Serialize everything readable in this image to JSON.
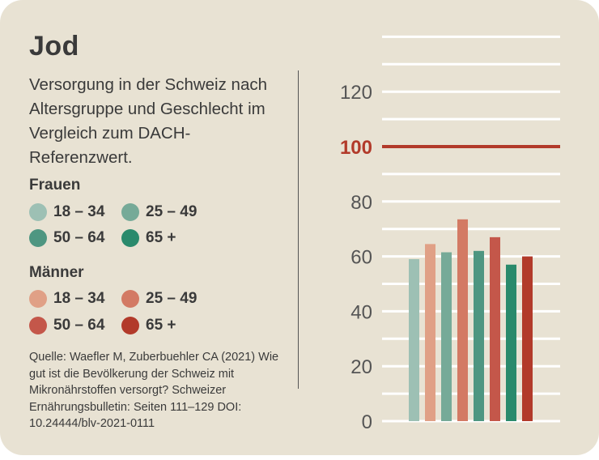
{
  "title": "Jod",
  "subtitle": "Versorgung in der Schweiz nach Altersgruppe und Geschlecht im Vergleich zum DACH-Referenzwert.",
  "legend": {
    "frauen": {
      "label": "Frauen",
      "items": [
        {
          "label": "18 – 34",
          "color": "#9dc0b4"
        },
        {
          "label": "25 – 49",
          "color": "#76aa98"
        },
        {
          "label": "50 – 64",
          "color": "#4e9681"
        },
        {
          "label": "65 +",
          "color": "#2a8a6c"
        }
      ]
    },
    "maenner": {
      "label": "Männer",
      "items": [
        {
          "label": "18 – 34",
          "color": "#e0a086"
        },
        {
          "label": "25 – 49",
          "color": "#d37a64"
        },
        {
          "label": "50 – 64",
          "color": "#c4574a"
        },
        {
          "label": "65 +",
          "color": "#b23a2a"
        }
      ]
    }
  },
  "source": "Quelle: Waefler M, Zuberbuehler CA (2021) Wie gut ist die Bevölkerung der Schweiz mit Mikronährstoffen versorgt? Schweizer Ernährungsbulletin: Seiten 111–129 DOI: 10.24444/blv-2021-0111",
  "chart_data": {
    "type": "bar",
    "title": "Jod",
    "xlabel": "",
    "ylabel": "",
    "ylim": [
      0,
      140
    ],
    "yticks": [
      0,
      20,
      40,
      60,
      80,
      100,
      120
    ],
    "grid": true,
    "reference_line": {
      "value": 100,
      "label": "100",
      "color": "#b23a2a"
    },
    "bars": [
      {
        "group": "Frauen",
        "age": "18 – 34",
        "value": 59,
        "color": "#9dc0b4"
      },
      {
        "group": "Männer",
        "age": "18 – 34",
        "value": 64.5,
        "color": "#e0a086"
      },
      {
        "group": "Frauen",
        "age": "25 – 49",
        "value": 61.5,
        "color": "#76aa98"
      },
      {
        "group": "Männer",
        "age": "25 – 49",
        "value": 73.5,
        "color": "#d37a64"
      },
      {
        "group": "Frauen",
        "age": "50 – 64",
        "value": 62,
        "color": "#4e9681"
      },
      {
        "group": "Männer",
        "age": "50 – 64",
        "value": 67,
        "color": "#c4574a"
      },
      {
        "group": "Frauen",
        "age": "65 +",
        "value": 57,
        "color": "#2a8a6c"
      },
      {
        "group": "Männer",
        "age": "65 +",
        "value": 60,
        "color": "#b23a2a"
      }
    ]
  }
}
